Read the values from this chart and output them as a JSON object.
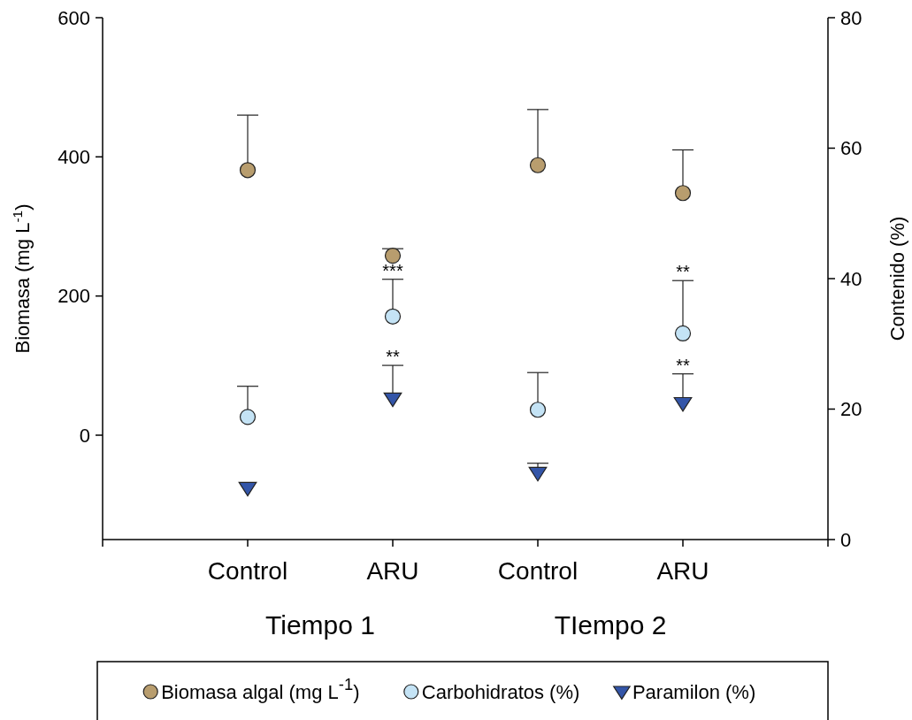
{
  "chart_data": {
    "type": "scatter",
    "categories": [
      "Control",
      "ARU",
      "Control",
      "ARU"
    ],
    "ylabel": "Biomasa (mg L$^{-1}$)",
    "y2label": "Contenido (%)",
    "ylim": [
      -150,
      600
    ],
    "yticks": [
      0,
      200,
      400,
      600
    ],
    "y2lim": [
      0,
      80
    ],
    "y2ticks": [
      0,
      20,
      40,
      60,
      80
    ],
    "series": [
      {
        "name": "Biomasa algal (mg L$^{-1}$)",
        "color": "#b89d6e",
        "marker": "circle",
        "values": [
          381,
          258,
          388,
          348
        ],
        "errors": [
          [
            381,
            460
          ],
          [
            258,
            268
          ],
          [
            388,
            468
          ],
          [
            348,
            410
          ]
        ]
      },
      {
        "name": "Carbohidratos (%)",
        "color": "#c4e3f5",
        "marker": "circle",
        "axis": "y2",
        "values": [
          18.8,
          34.2,
          19.9,
          31.6
        ],
        "errors": [
          [
            18.8,
            23.5
          ],
          [
            34.2,
            39.9
          ],
          [
            19.9,
            25.6
          ],
          [
            31.6,
            39.7
          ]
        ]
      },
      {
        "name": "Paramilon (%)",
        "color": "#3355a8",
        "marker": "triangle",
        "axis": "y2",
        "values": [
          7.9,
          21.6,
          10.2,
          20.9
        ],
        "errors": [
          null,
          [
            21.6,
            26.7
          ],
          [
            10.2,
            11.7
          ],
          [
            20.9,
            25.4
          ]
        ]
      }
    ],
    "annotations": [
      "Tiempo 1",
      "TIempo 2",
      {
        "text": "***",
        "x": "ARU",
        "y": 224
      },
      {
        "text": "**",
        "x": "ARU",
        "y": 100
      },
      "**",
      "**"
    ],
    "legend": "bottom",
    "grid": false
  }
}
